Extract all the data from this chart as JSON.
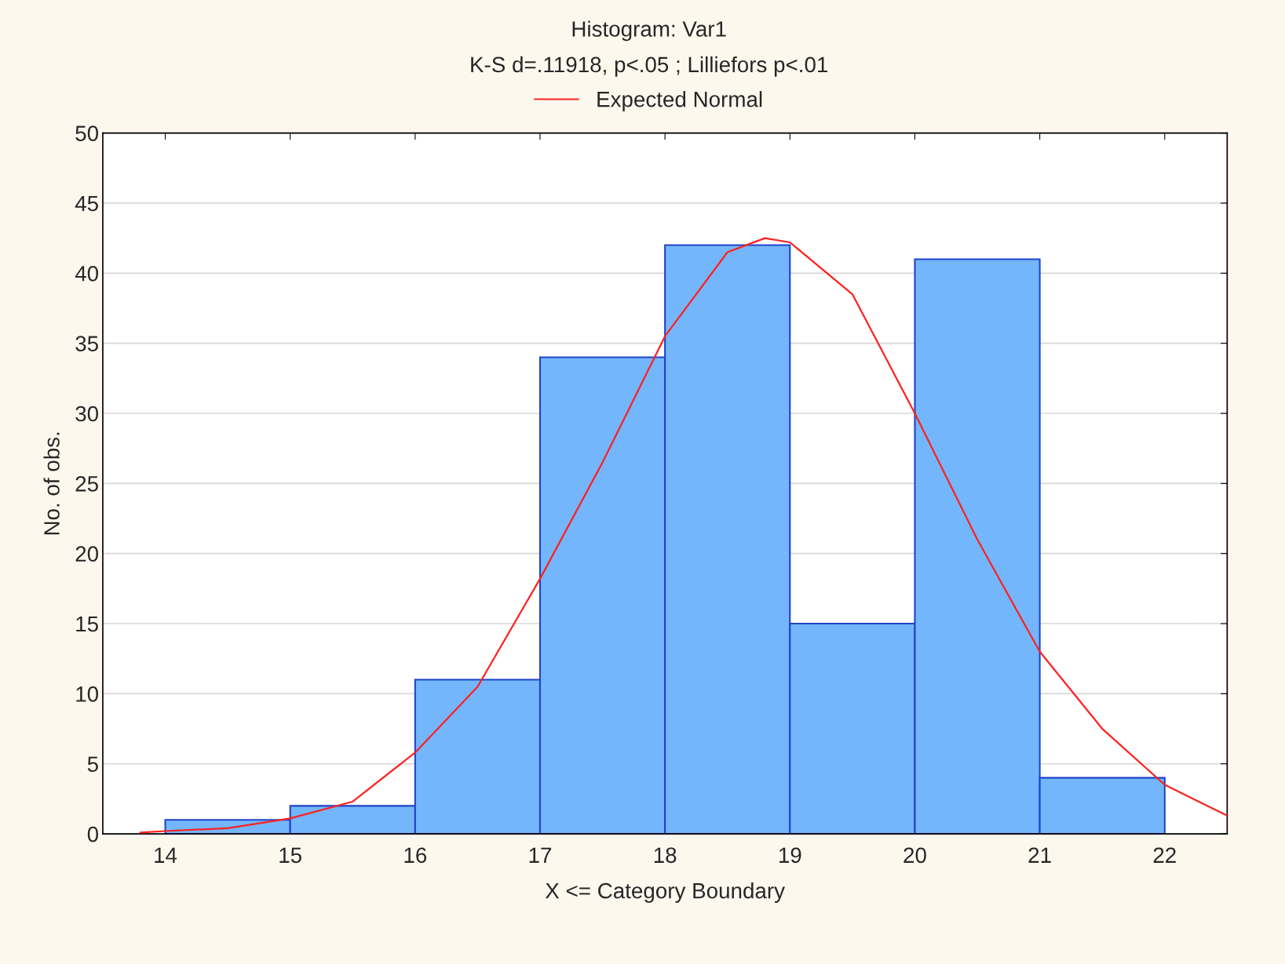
{
  "chart_data": {
    "type": "histogram",
    "title": "Histogram: Var1",
    "subtitle": "K-S d=.11918, p<.05 ; Lilliefors p<.01",
    "xlabel": "X <= Category Boundary",
    "ylabel": "No. of obs.",
    "bins": [
      14,
      15,
      16,
      17,
      18,
      19,
      20,
      21,
      22
    ],
    "values": [
      1,
      2,
      11,
      34,
      42,
      15,
      41,
      4
    ],
    "color": "#74b6fb",
    "series": [
      {
        "type": "line",
        "name": "Expected Normal",
        "color": "#ff2020",
        "x": [
          13.8,
          14,
          14.5,
          15,
          15.5,
          16,
          16.5,
          17,
          17.5,
          18,
          18.5,
          18.8,
          19,
          19.5,
          20,
          20.5,
          21,
          21.5,
          22,
          22.5
        ],
        "values": [
          0.1,
          0.2,
          0.4,
          1.1,
          2.3,
          5.8,
          10.5,
          18.2,
          26.5,
          35.5,
          41.5,
          42.5,
          42.2,
          38.5,
          30,
          21,
          13,
          7.5,
          3.5,
          1.3
        ]
      }
    ],
    "xlim": [
      13.5,
      22.5
    ],
    "ylim": [
      0,
      50
    ],
    "xticks": [
      14,
      15,
      16,
      17,
      18,
      19,
      20,
      21,
      22
    ],
    "yticks": [
      0,
      5,
      10,
      15,
      20,
      25,
      30,
      35,
      40,
      45,
      50
    ],
    "grid": "y",
    "legend": "top"
  }
}
